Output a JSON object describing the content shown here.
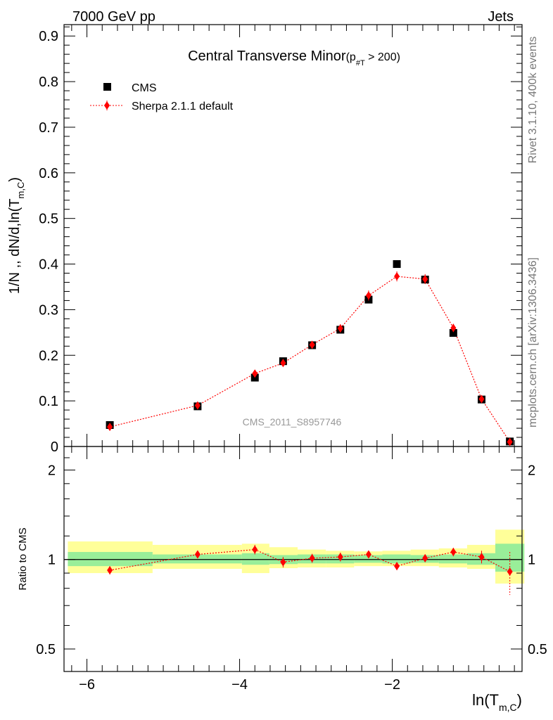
{
  "header": {
    "energy_label": "7000 GeV pp",
    "process_label": "Jets"
  },
  "side_labels": {
    "rivet": "Rivet 3.1.10,  400k events",
    "source": "mcplots.cern.ch [arXiv:1306.3436]"
  },
  "watermark": "CMS_2011_S8957746",
  "chart_data": [
    {
      "type": "scatter",
      "title_main": "Central Transverse Minor",
      "title_cut_prefix": "(p",
      "title_cut_sub": "#T",
      "title_cut_suffix": " > 200)",
      "ylabel_main": "1/N ,, dN/d,ln(T",
      "ylabel_sub": "m,C",
      "ylabel_close": ")",
      "xlim": [
        -6.3,
        -0.3
      ],
      "ylim": [
        0,
        0.925
      ],
      "yticks": [
        "0",
        "0.1",
        "0.2",
        "0.3",
        "0.4",
        "0.5",
        "0.6",
        "0.7",
        "0.8",
        "0.9"
      ],
      "legend_position": "top-left",
      "x": [
        -5.7,
        -4.55,
        -3.8,
        -3.43,
        -3.05,
        -2.68,
        -2.31,
        -1.94,
        -1.57,
        -1.2,
        -0.83,
        -0.46
      ],
      "series": [
        {
          "name": "CMS",
          "color": "#000000",
          "marker": "square",
          "values": [
            0.047,
            0.088,
            0.151,
            0.187,
            0.222,
            0.256,
            0.322,
            0.4,
            0.366,
            0.249,
            0.103,
            0.011
          ]
        },
        {
          "name": "Sherpa 2.1.1 default",
          "color": "#ff0000",
          "marker": "diamond",
          "line": "dotted",
          "values": [
            0.043,
            0.09,
            0.16,
            0.183,
            0.223,
            0.259,
            0.331,
            0.373,
            0.367,
            0.26,
            0.104,
            0.01
          ],
          "errors": [
            0.004,
            0.005,
            0.007,
            0.008,
            0.008,
            0.009,
            0.011,
            0.011,
            0.011,
            0.009,
            0.005,
            0.003
          ]
        }
      ]
    },
    {
      "type": "scatter",
      "ylabel": "Ratio to CMS",
      "xlabel_main": "ln(T",
      "xlabel_sub": "m,C",
      "xlabel_close": ")",
      "xlim": [
        -6.3,
        -0.3
      ],
      "ylim": [
        0.42,
        2.4
      ],
      "log_scale_y": true,
      "yticks": [
        "0.5",
        "1",
        "2"
      ],
      "xticks": [
        "−6",
        "−4",
        "−2"
      ],
      "bands": {
        "edges": [
          -6.25,
          -5.14,
          -3.97,
          -3.61,
          -3.24,
          -2.87,
          -2.5,
          -2.13,
          -1.76,
          -1.39,
          -1.02,
          -0.65,
          -0.27
        ],
        "inner_lo": [
          0.95,
          0.97,
          0.96,
          0.965,
          0.97,
          0.97,
          0.975,
          0.97,
          0.975,
          0.97,
          0.96,
          0.91
        ],
        "inner_hi": [
          1.06,
          1.04,
          1.05,
          1.035,
          1.04,
          1.04,
          1.035,
          1.04,
          1.035,
          1.04,
          1.05,
          1.13
        ],
        "outer_lo": [
          0.9,
          0.93,
          0.9,
          0.935,
          0.94,
          0.94,
          0.95,
          0.95,
          0.95,
          0.94,
          0.93,
          0.83
        ],
        "outer_hi": [
          1.15,
          1.12,
          1.13,
          1.1,
          1.08,
          1.07,
          1.065,
          1.07,
          1.08,
          1.09,
          1.12,
          1.26
        ],
        "inner_color": "#99ee99",
        "outer_color": "#ffff99"
      },
      "ratio_values": [
        0.92,
        1.04,
        1.08,
        0.98,
        1.01,
        1.02,
        1.04,
        0.95,
        1.01,
        1.06,
        1.02,
        0.91
      ],
      "ratio_errors": [
        0.03,
        0.03,
        0.04,
        0.04,
        0.035,
        0.035,
        0.03,
        0.03,
        0.03,
        0.035,
        0.05,
        0.15
      ]
    }
  ]
}
